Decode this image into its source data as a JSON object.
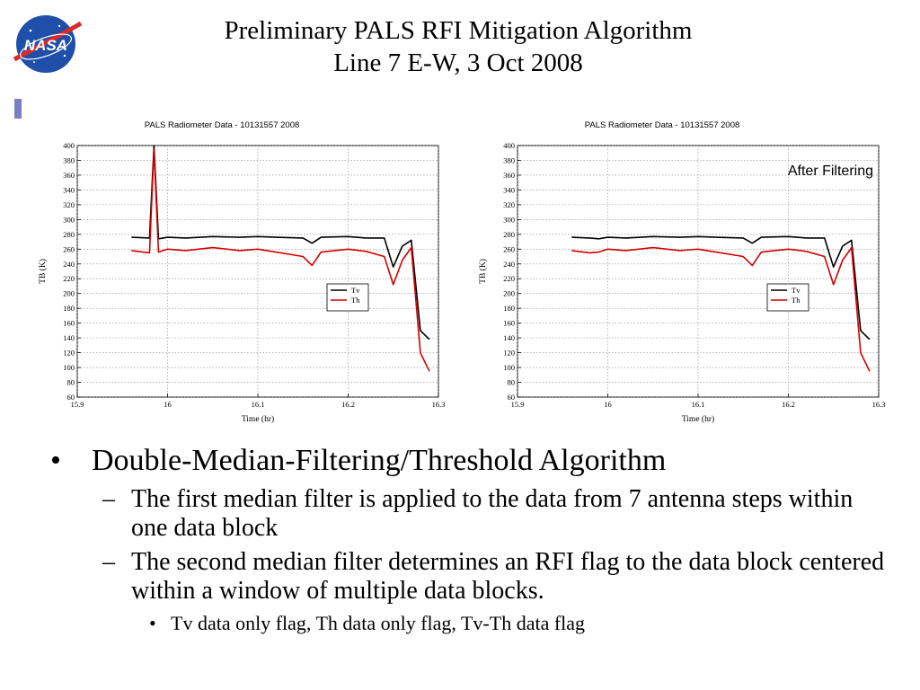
{
  "slide": {
    "title_line1": "Preliminary PALS RFI Mitigation Algorithm",
    "title_line2": "Line 7 E-W, 3 Oct 2008",
    "logo_text": "NASA",
    "accent_color": "#7b7fc4"
  },
  "chart_data": [
    {
      "type": "line",
      "title": "PALS Radiometer Data - 10131557 2008",
      "xlabel": "Time (hr)",
      "ylabel": "TB (K)",
      "xlim": [
        15.9,
        16.3
      ],
      "ylim": [
        60,
        400
      ],
      "x_ticks": [
        "15.9",
        "16",
        "16.1",
        "16.2",
        "16.3"
      ],
      "y_ticks": [
        "60",
        "80",
        "100",
        "120",
        "140",
        "160",
        "180",
        "200",
        "220",
        "240",
        "260",
        "280",
        "300",
        "320",
        "340",
        "360",
        "380",
        "400"
      ],
      "grid": true,
      "legend_position": "right-middle",
      "series": [
        {
          "name": "Tv",
          "color": "#000000",
          "x": [
            15.96,
            15.98,
            15.985,
            15.99,
            16.0,
            16.02,
            16.05,
            16.08,
            16.1,
            16.12,
            16.15,
            16.16,
            16.17,
            16.2,
            16.22,
            16.24,
            16.25,
            16.26,
            16.27,
            16.28,
            16.29
          ],
          "y": [
            276,
            275,
            400,
            274,
            276,
            275,
            277,
            276,
            277,
            276,
            275,
            268,
            276,
            277,
            275,
            275,
            236,
            264,
            272,
            150,
            138
          ]
        },
        {
          "name": "Th",
          "color": "#d40000",
          "x": [
            15.96,
            15.98,
            15.985,
            15.99,
            16.0,
            16.02,
            16.05,
            16.08,
            16.1,
            16.12,
            16.15,
            16.16,
            16.17,
            16.2,
            16.22,
            16.24,
            16.25,
            16.26,
            16.27,
            16.28,
            16.29
          ],
          "y": [
            258,
            255,
            395,
            256,
            260,
            258,
            262,
            258,
            260,
            256,
            250,
            238,
            256,
            260,
            257,
            250,
            212,
            245,
            262,
            120,
            95
          ]
        }
      ]
    },
    {
      "type": "line",
      "title": "PALS Radiometer Data - 10131557 2008",
      "annotation": "After Filtering",
      "xlabel": "Time (hr)",
      "ylabel": "TB (K)",
      "xlim": [
        15.9,
        16.3
      ],
      "ylim": [
        60,
        400
      ],
      "x_ticks": [
        "15.9",
        "16",
        "16.1",
        "16.2",
        "16.3"
      ],
      "y_ticks": [
        "60",
        "80",
        "100",
        "120",
        "140",
        "160",
        "180",
        "200",
        "220",
        "240",
        "260",
        "280",
        "300",
        "320",
        "340",
        "360",
        "380",
        "400"
      ],
      "grid": true,
      "legend_position": "right-middle",
      "series": [
        {
          "name": "Tv",
          "color": "#000000",
          "x": [
            15.96,
            15.98,
            15.99,
            16.0,
            16.02,
            16.05,
            16.08,
            16.1,
            16.12,
            16.15,
            16.16,
            16.17,
            16.2,
            16.22,
            16.24,
            16.25,
            16.26,
            16.27,
            16.28,
            16.29
          ],
          "y": [
            276,
            275,
            274,
            276,
            275,
            277,
            276,
            277,
            276,
            275,
            268,
            276,
            277,
            275,
            275,
            236,
            264,
            272,
            150,
            138
          ]
        },
        {
          "name": "Th",
          "color": "#d40000",
          "x": [
            15.96,
            15.98,
            15.99,
            16.0,
            16.02,
            16.05,
            16.08,
            16.1,
            16.12,
            16.15,
            16.16,
            16.17,
            16.2,
            16.22,
            16.24,
            16.25,
            16.26,
            16.27,
            16.28,
            16.29
          ],
          "y": [
            258,
            255,
            256,
            260,
            258,
            262,
            258,
            260,
            256,
            250,
            238,
            256,
            260,
            257,
            250,
            212,
            245,
            262,
            120,
            95
          ]
        }
      ]
    }
  ],
  "bullets": {
    "main": "Double-Median-Filtering/Threshold Algorithm",
    "sub1": "The first median filter is applied to the data from 7 antenna steps within one data block",
    "sub2": "The second median filter determines an RFI flag to the data block centered within a window of multiple data blocks.",
    "sub3": "Tv data only flag, Th data only flag, Tv-Th data flag"
  }
}
